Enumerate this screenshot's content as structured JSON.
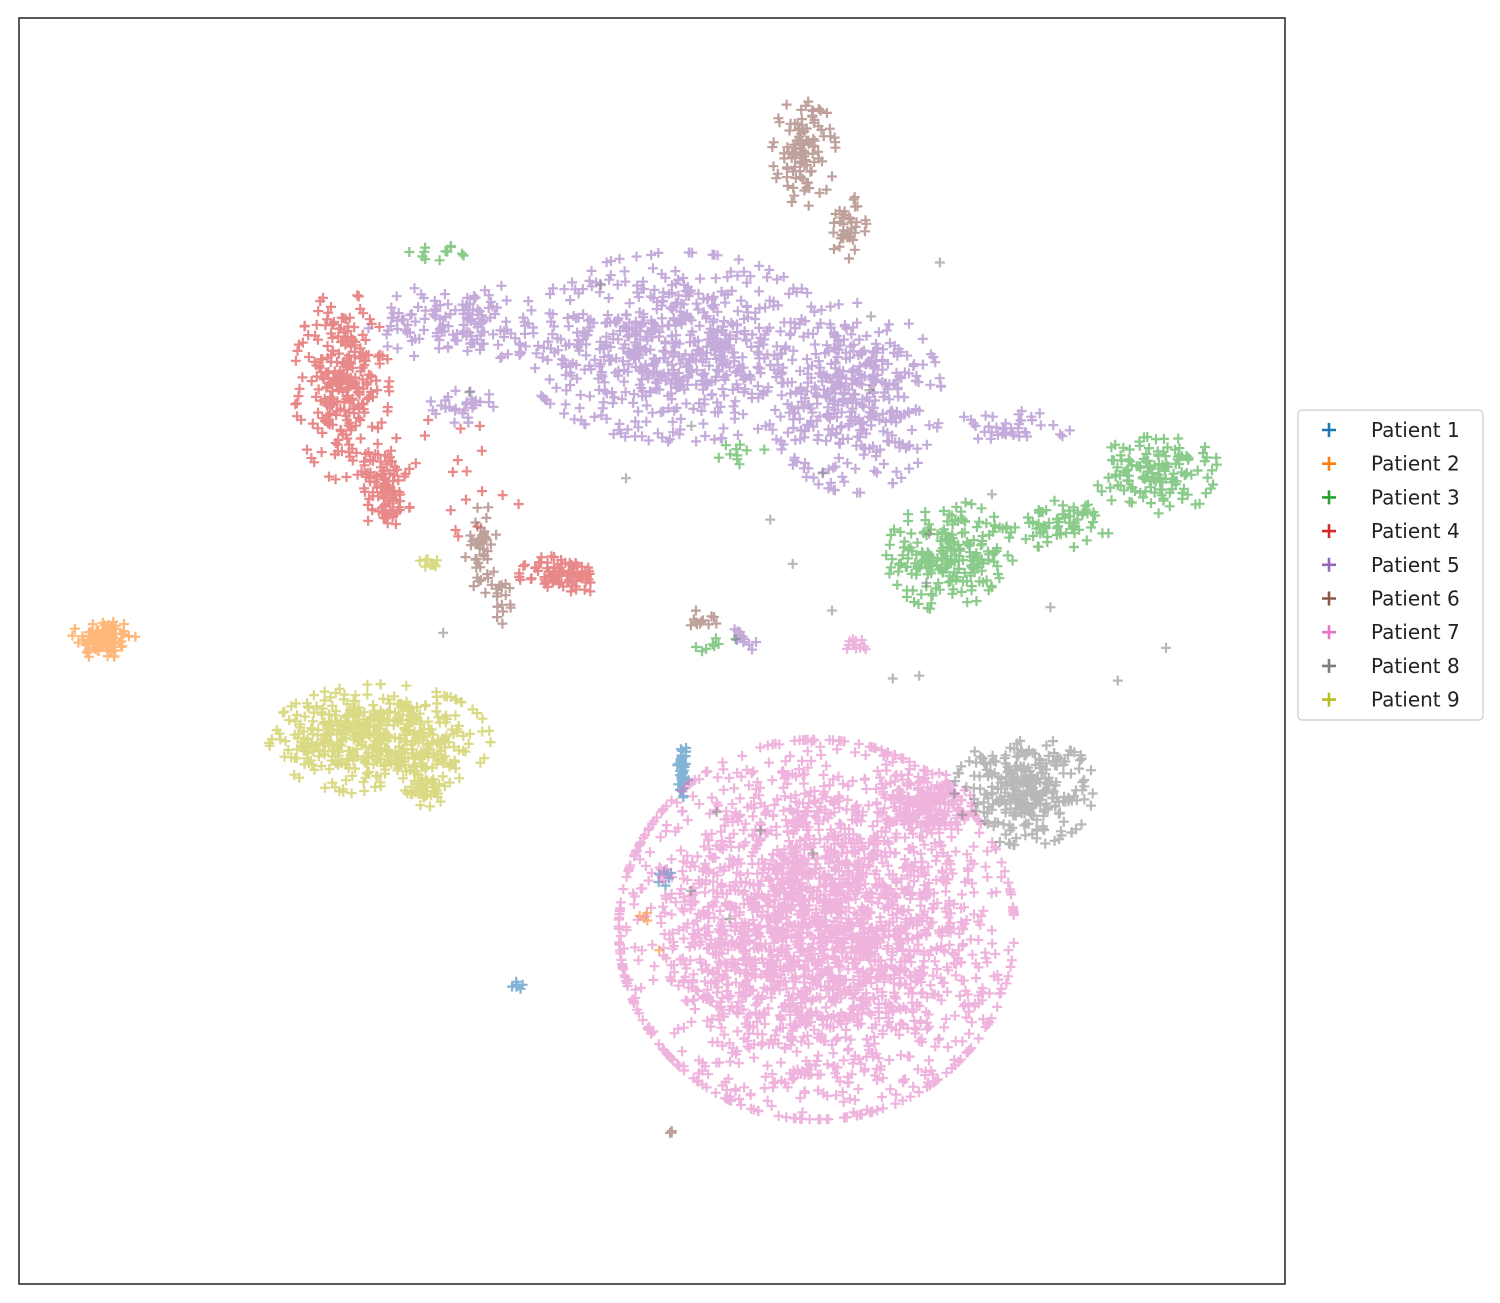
{
  "chart_data": {
    "type": "scatter",
    "title": "",
    "xlabel": "",
    "ylabel": "",
    "xlim": [
      0,
      100
    ],
    "ylim": [
      0,
      100
    ],
    "grid": false,
    "axis_ticks": false,
    "marker": "+",
    "legend_placement": "center-right-outside",
    "series": [
      {
        "name": "Patient 1",
        "color": "#1f77b4",
        "clusters": [
          {
            "cx": 52.4,
            "cy": 40.5,
            "rx": 0.4,
            "ry": 2.2,
            "n": 40
          },
          {
            "cx": 51.0,
            "cy": 32.0,
            "rx": 0.6,
            "ry": 0.6,
            "n": 8
          },
          {
            "cx": 40.0,
            "cy": 23.5,
            "rx": 1.0,
            "ry": 0.5,
            "n": 8
          }
        ]
      },
      {
        "name": "Patient 2",
        "color": "#ff7f0e",
        "clusters": [
          {
            "cx": 6.7,
            "cy": 51.0,
            "rx": 2.0,
            "ry": 1.5,
            "n": 90
          },
          {
            "cx": 49.5,
            "cy": 29.0,
            "rx": 0.4,
            "ry": 0.4,
            "n": 4
          },
          {
            "cx": 50.5,
            "cy": 26.3,
            "rx": 0.2,
            "ry": 0.2,
            "n": 1
          }
        ]
      },
      {
        "name": "Patient 3",
        "color": "#2ca02c",
        "clusters": [
          {
            "cx": 73.5,
            "cy": 57.5,
            "rx": 4.0,
            "ry": 3.5,
            "n": 220
          },
          {
            "cx": 82.0,
            "cy": 60.0,
            "rx": 3.5,
            "ry": 1.5,
            "n": 70
          },
          {
            "cx": 90.0,
            "cy": 64.0,
            "rx": 4.0,
            "ry": 2.5,
            "n": 140
          },
          {
            "cx": 33.0,
            "cy": 81.5,
            "rx": 2.5,
            "ry": 0.6,
            "n": 12
          },
          {
            "cx": 57.0,
            "cy": 66.0,
            "rx": 1.5,
            "ry": 1.5,
            "n": 10
          },
          {
            "cx": 55.0,
            "cy": 50.5,
            "rx": 2.0,
            "ry": 0.6,
            "n": 8
          }
        ]
      },
      {
        "name": "Patient 4",
        "color": "#d62728",
        "clusters": [
          {
            "cx": 25.5,
            "cy": 71.0,
            "rx": 3.0,
            "ry": 6.0,
            "n": 260
          },
          {
            "cx": 29.0,
            "cy": 64.0,
            "rx": 1.5,
            "ry": 2.5,
            "n": 60
          },
          {
            "cx": 29.0,
            "cy": 61.5,
            "rx": 1.5,
            "ry": 1.5,
            "n": 40
          },
          {
            "cx": 43.0,
            "cy": 56.0,
            "rx": 2.8,
            "ry": 1.3,
            "n": 90
          },
          {
            "cx": 35.0,
            "cy": 64.0,
            "rx": 5.0,
            "ry": 5.0,
            "n": 18
          }
        ]
      },
      {
        "name": "Patient 5",
        "color": "#9467bd",
        "clusters": [
          {
            "cx": 52.0,
            "cy": 74.0,
            "rx": 10.0,
            "ry": 6.0,
            "n": 700
          },
          {
            "cx": 66.0,
            "cy": 70.0,
            "rx": 5.5,
            "ry": 6.0,
            "n": 380
          },
          {
            "cx": 35.0,
            "cy": 76.0,
            "rx": 6.0,
            "ry": 2.5,
            "n": 140
          },
          {
            "cx": 35.0,
            "cy": 69.5,
            "rx": 2.0,
            "ry": 1.2,
            "n": 30
          },
          {
            "cx": 78.0,
            "cy": 67.5,
            "rx": 4.0,
            "ry": 1.2,
            "n": 40
          },
          {
            "cx": 57.0,
            "cy": 51.0,
            "rx": 1.5,
            "ry": 1.0,
            "n": 12
          }
        ]
      },
      {
        "name": "Patient 6",
        "color": "#8c564b",
        "clusters": [
          {
            "cx": 62.0,
            "cy": 89.5,
            "rx": 2.0,
            "ry": 3.5,
            "n": 110
          },
          {
            "cx": 65.5,
            "cy": 83.5,
            "rx": 1.5,
            "ry": 2.0,
            "n": 40
          },
          {
            "cx": 36.5,
            "cy": 58.0,
            "rx": 1.0,
            "ry": 3.0,
            "n": 45
          },
          {
            "cx": 38.0,
            "cy": 54.0,
            "rx": 0.7,
            "ry": 1.5,
            "n": 18
          },
          {
            "cx": 54.0,
            "cy": 52.5,
            "rx": 1.2,
            "ry": 0.6,
            "n": 12
          },
          {
            "cx": 51.5,
            "cy": 12.0,
            "rx": 0.3,
            "ry": 0.3,
            "n": 3
          }
        ]
      },
      {
        "name": "Patient 7",
        "color": "#e377c2",
        "clusters": [
          {
            "cx": 63.0,
            "cy": 28.0,
            "rx": 12.5,
            "ry": 12.0,
            "n": 2600
          },
          {
            "cx": 71.5,
            "cy": 38.0,
            "rx": 3.0,
            "ry": 2.0,
            "n": 200
          },
          {
            "cx": 66.0,
            "cy": 50.5,
            "rx": 0.8,
            "ry": 0.6,
            "n": 12
          }
        ]
      },
      {
        "name": "Patient 8",
        "color": "#7f7f7f",
        "clusters": [
          {
            "cx": 79.5,
            "cy": 39.0,
            "rx": 4.5,
            "ry": 3.5,
            "n": 320
          },
          {
            "cx": 66.0,
            "cy": 55.0,
            "rx": 28.0,
            "ry": 25.0,
            "n": 25
          }
        ]
      },
      {
        "name": "Patient 9",
        "color": "#bcbd22",
        "clusters": [
          {
            "cx": 28.5,
            "cy": 43.0,
            "rx": 7.0,
            "ry": 3.5,
            "n": 520
          },
          {
            "cx": 31.8,
            "cy": 39.0,
            "rx": 1.5,
            "ry": 1.2,
            "n": 40
          },
          {
            "cx": 32.5,
            "cy": 57.0,
            "rx": 0.7,
            "ry": 0.4,
            "n": 10
          }
        ]
      }
    ]
  }
}
